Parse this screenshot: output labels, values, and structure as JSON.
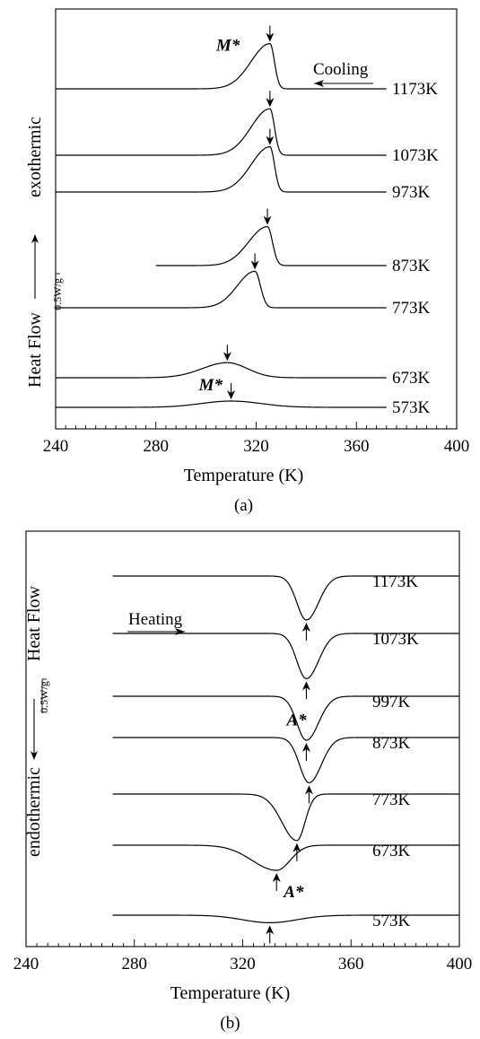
{
  "chart_data": [
    {
      "type": "line",
      "panel_label": "(a)",
      "xlabel": "Temperature (K)",
      "ylabel": "Heat Flow",
      "ylabel_direction": "exothermic",
      "scale_bar_label": "0.5W/g",
      "mode_label": "Cooling",
      "xlim": [
        240,
        400
      ],
      "x_ticks": [
        "240",
        "280",
        "320",
        "360",
        "400"
      ],
      "x_tick_values": [
        240,
        280,
        320,
        360,
        400
      ],
      "annotations": [
        {
          "text": "M*",
          "peak_index": 0
        },
        {
          "text": "M*",
          "peak_index": 6
        }
      ],
      "series": [
        {
          "name": "1173K",
          "peak_x": 325.5,
          "peak_height": 3.6,
          "width_left": 7.5,
          "width_right": 1.8,
          "start_x": 240,
          "end_x": 372,
          "offset": 0
        },
        {
          "name": "1073K",
          "peak_x": 325.5,
          "peak_height": 3.7,
          "width_left": 7.5,
          "width_right": 1.8,
          "start_x": 240,
          "end_x": 372,
          "offset": 1
        },
        {
          "name": "973K",
          "peak_x": 325.5,
          "peak_height": 3.6,
          "width_left": 7.5,
          "width_right": 1.8,
          "start_x": 240,
          "end_x": 372,
          "offset": 2
        },
        {
          "name": "873K",
          "peak_x": 324.5,
          "peak_height": 3.1,
          "width_left": 7.5,
          "width_right": 2.0,
          "start_x": 280,
          "end_x": 372,
          "offset": 3
        },
        {
          "name": "773K",
          "peak_x": 319.5,
          "peak_height": 2.9,
          "width_left": 7.0,
          "width_right": 2.2,
          "start_x": 240,
          "end_x": 372,
          "offset": 4
        },
        {
          "name": "673K",
          "peak_x": 308.5,
          "peak_height": 1.2,
          "width_left": 10.0,
          "width_right": 8.0,
          "start_x": 240,
          "end_x": 372,
          "offset": 5
        },
        {
          "name": "573K",
          "peak_x": 310.0,
          "peak_height": 0.5,
          "width_left": 12.0,
          "width_right": 12.0,
          "start_x": 240,
          "end_x": 372,
          "offset": 6
        }
      ]
    },
    {
      "type": "line",
      "panel_label": "(b)",
      "xlabel": "Temperature (K)",
      "ylabel": "Heat Flow",
      "ylabel_direction": "endothermic",
      "scale_bar_label": "0.5W/g",
      "mode_label": "Heating",
      "xlim": [
        240,
        400
      ],
      "x_ticks": [
        "240",
        "280",
        "320",
        "360",
        "400"
      ],
      "x_tick_values": [
        240,
        280,
        320,
        360,
        400
      ],
      "annotations": [
        {
          "text": "A*",
          "peak_index": 1
        },
        {
          "text": "A*",
          "peak_index": 5
        }
      ],
      "series": [
        {
          "name": "1173K",
          "peak_x": 343.5,
          "peak_height": 3.5,
          "width_left": 3.5,
          "width_right": 4.5,
          "start_x": 272,
          "end_x": 400,
          "offset": 0
        },
        {
          "name": "1073K",
          "peak_x": 343.5,
          "peak_height": 3.6,
          "width_left": 3.5,
          "width_right": 4.5,
          "start_x": 272,
          "end_x": 400,
          "offset": 1
        },
        {
          "name": "997K",
          "peak_x": 343.5,
          "peak_height": 3.5,
          "width_left": 3.5,
          "width_right": 4.5,
          "start_x": 272,
          "end_x": 400,
          "offset": 2
        },
        {
          "name": "873K",
          "peak_x": 344.5,
          "peak_height": 3.6,
          "width_left": 3.5,
          "width_right": 4.5,
          "start_x": 272,
          "end_x": 400,
          "offset": 3
        },
        {
          "name": "773K",
          "peak_x": 340.0,
          "peak_height": 3.7,
          "width_left": 5.5,
          "width_right": 3.0,
          "start_x": 272,
          "end_x": 400,
          "offset": 4
        },
        {
          "name": "673K",
          "peak_x": 332.5,
          "peak_height": 2.0,
          "width_left": 9.0,
          "width_right": 5.0,
          "start_x": 272,
          "end_x": 400,
          "offset": 5
        },
        {
          "name": "573K",
          "peak_x": 330.0,
          "peak_height": 0.6,
          "width_left": 10.0,
          "width_right": 10.0,
          "start_x": 272,
          "end_x": 400,
          "offset": 6
        }
      ]
    }
  ]
}
